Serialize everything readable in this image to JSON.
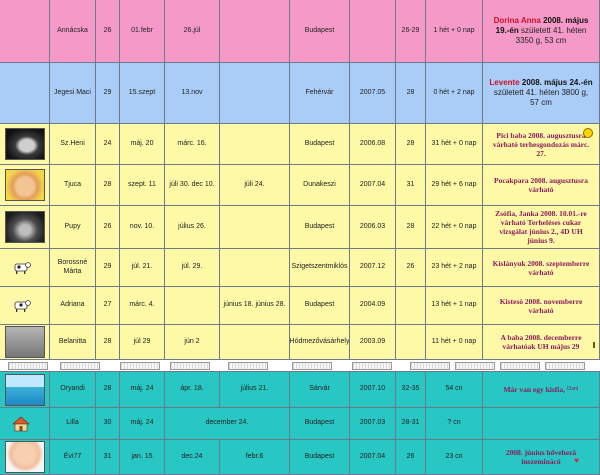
{
  "rows": [
    {
      "name": "Annácska",
      "age": "26",
      "d1": "01.febr",
      "d2": "26.júl",
      "d3": "",
      "city": "Budapest",
      "since": "",
      "cycle": "26-29",
      "week": "1 hét + 0 nap",
      "note_name": "Dorina Anna",
      "note_date": "2008. május 19.-én",
      "note_rest": "született 41. héten 3350 g, 53 cm"
    },
    {
      "name": "Jegesi Maci",
      "age": "29",
      "d1": "15.szept",
      "d2": "13.nov",
      "d3": "",
      "city": "Fehérvár",
      "since": "2007.05",
      "cycle": "28",
      "week": "0 hét + 2 nap",
      "note_name": "Levente",
      "note_date": "2008. május 24.-én",
      "note_rest": "született 41. héten 3800 g, 57 cm"
    },
    {
      "name": "Sz.Heni",
      "age": "24",
      "d1": "máj. 20",
      "d2": "márc. 16.",
      "d3": "",
      "city": "Budapest",
      "since": "2006.08",
      "cycle": "28",
      "week": "31 hét + 0 nap",
      "note": "Pici baba 2008. augusztusra várható terhesgondozás márc. 27."
    },
    {
      "name": "Tjuca",
      "age": "28",
      "d1": "szept. 11",
      "d2": "júli 30.   dec 10.",
      "d3": "júli 24.",
      "city": "Dunakeszi",
      "since": "2007.04",
      "cycle": "31",
      "week": "29 hét + 6 nap",
      "note": "Pocakpara 2008. augusztusra várható"
    },
    {
      "name": "Pupy",
      "age": "26",
      "d1": "nov. 10.",
      "d2": "július 26.",
      "d3": "",
      "city": "Budapest",
      "since": "2006.03",
      "cycle": "28",
      "week": "22 hét + 0 nap",
      "note": "Zsófia, Janka 2008. 10.01.-re várható   Terheléses cukar vizsgálat június 2., 4D UH június 9."
    },
    {
      "name": "Borossné Márta",
      "age": "29",
      "d1": "júl. 21.",
      "d2": "júl. 29.",
      "d3": "",
      "city": "Szigetszentmiklós",
      "since": "2007.12",
      "cycle": "26",
      "week": "23 hét + 2 nap",
      "note": "Kislányuk 2008. szeptemberre várható"
    },
    {
      "name": "Adriana",
      "age": "27",
      "d1": "márc. 4.",
      "d2": "",
      "d3": "június 18.     június 28.",
      "city": "Budapest",
      "since": "2004.09",
      "cycle": "",
      "week": "13 hét + 1 nap",
      "note": "Kistesó 2008. novemberre várható"
    },
    {
      "name": "Belanitta",
      "age": "28",
      "d1": "júl 29",
      "d2": "jún 2",
      "d3": "",
      "city": "Hódmezővásárhely",
      "since": "2003.09",
      "cycle": "",
      "week": "11 hét + 0 nap",
      "note": "A baba 2008. decemberre várhatóak   UH május 29"
    },
    {
      "name": "Oryandi",
      "age": "28",
      "d1": "máj. 24",
      "d2": "ápr. 18.",
      "d3": "július 21.",
      "city": "Sárvár",
      "since": "2007.10",
      "cycle": "32-35",
      "week": "54 cn",
      "note": "Már van egy kisfia,",
      "note_small": "Dani"
    },
    {
      "name": "Lilla",
      "age": "30",
      "d1": "máj. 24",
      "d2": "december 24.",
      "d3": "",
      "city": "Budapest",
      "since": "2007.03",
      "cycle": "28-31",
      "week": "? cn",
      "note": ""
    },
    {
      "name": "Évi77",
      "age": "31",
      "d1": "jan. 15",
      "d2": "dec.24",
      "d3": "febr.6",
      "city": "Budapest",
      "since": "2007.04",
      "cycle": "26",
      "week": "23 cn",
      "note": "2008. június hőveheză inszeminácó"
    }
  ]
}
